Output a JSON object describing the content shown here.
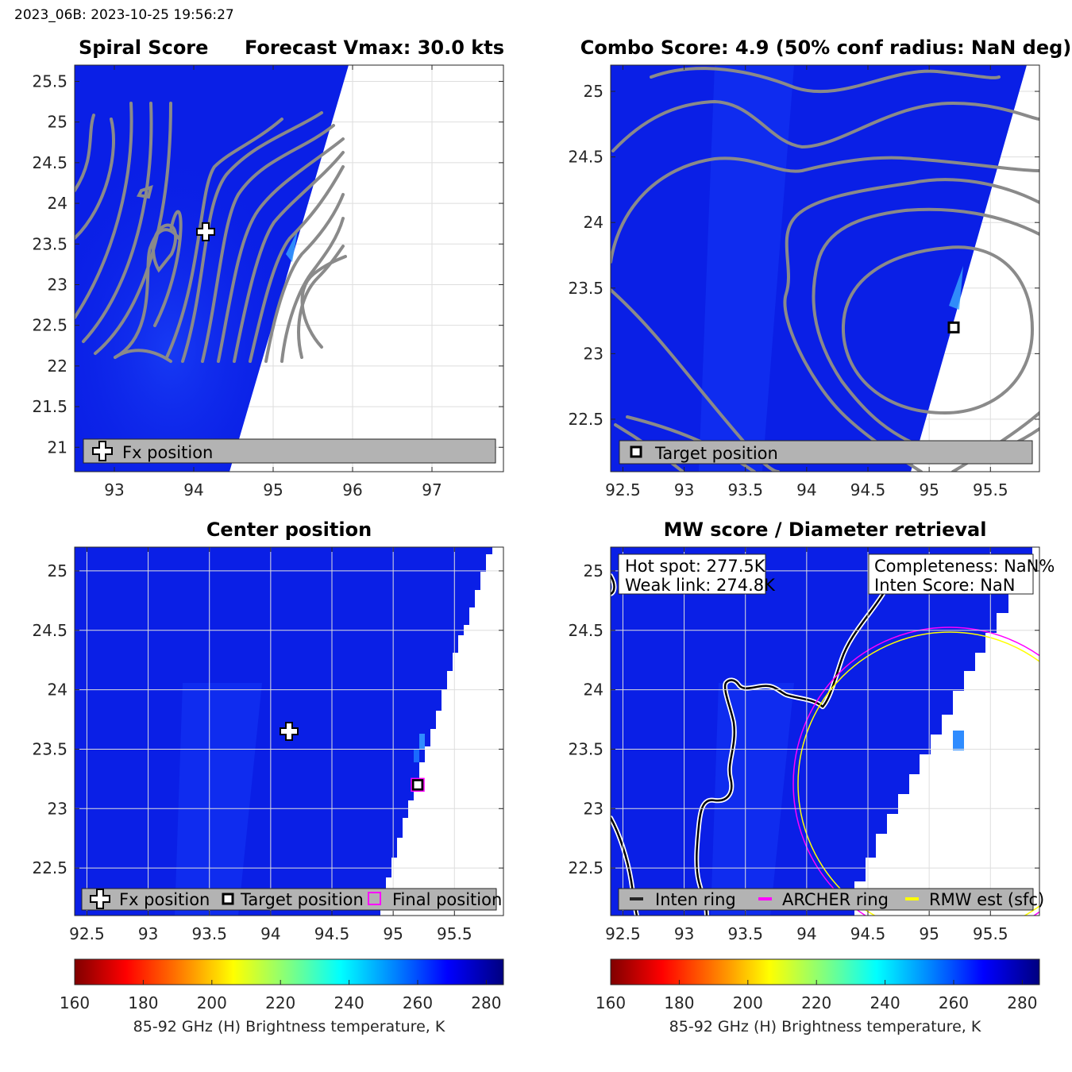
{
  "header": {
    "text": "2023_06B: 2023-10-25 19:56:27"
  },
  "colors": {
    "field_blue": "#0a1fe6",
    "field_blue_light": "#1a48ff",
    "contour_gray": "#8a8a8a",
    "legend_bg": "#b3b3b3",
    "archer_ring": "#ff00ff",
    "rmw_ring": "#ffff00"
  },
  "chart_data": [
    {
      "type": "heatmap",
      "title_left": "Spiral Score",
      "title_right": "Forecast Vmax: 30.0 kts",
      "xlim": [
        92.5,
        97.9
      ],
      "ylim": [
        20.7,
        25.7
      ],
      "xticks": [
        "93",
        "94",
        "95",
        "96",
        "97"
      ],
      "yticks": [
        "21",
        "21.5",
        "22",
        "22.5",
        "23",
        "23.5",
        "24",
        "24.5",
        "25",
        "25.5"
      ],
      "grid": true,
      "swath_edge": [
        [
          95.92,
          25.7
        ],
        [
          94.42,
          20.7
        ]
      ],
      "markers": [
        {
          "type": "plus",
          "x": 94.15,
          "y": 23.65,
          "label": "Fx position"
        }
      ],
      "legend": [
        "Fx position"
      ],
      "legend_position": "bottom"
    },
    {
      "type": "heatmap",
      "title": "Combo Score: 4.9  (50% conf radius: NaN deg)",
      "xlim": [
        92.4,
        95.9
      ],
      "ylim": [
        22.1,
        25.2
      ],
      "xticks": [
        "92.5",
        "93",
        "93.5",
        "94",
        "94.5",
        "95",
        "95.5"
      ],
      "yticks": [
        "22.5",
        "23",
        "23.5",
        "24",
        "24.5",
        "25"
      ],
      "grid": true,
      "swath_edge": [
        [
          95.72,
          25.2
        ],
        [
          94.85,
          22.1
        ]
      ],
      "markers": [
        {
          "type": "square",
          "x": 95.2,
          "y": 23.2,
          "label": "Target position"
        }
      ],
      "legend": [
        "Target position"
      ],
      "legend_position": "bottom"
    },
    {
      "type": "heatmap",
      "title": "Center position",
      "xlim": [
        92.4,
        95.9
      ],
      "ylim": [
        22.1,
        25.2
      ],
      "xticks": [
        "92.5",
        "93",
        "93.5",
        "94",
        "94.5",
        "95",
        "95.5"
      ],
      "yticks": [
        "22.5",
        "23",
        "23.5",
        "24",
        "24.5",
        "25"
      ],
      "grid": true,
      "swath_edge": [
        [
          95.72,
          25.2
        ],
        [
          94.85,
          22.1
        ]
      ],
      "markers": [
        {
          "type": "plus",
          "x": 94.15,
          "y": 23.65,
          "label": "Fx position"
        },
        {
          "type": "square",
          "x": 95.2,
          "y": 23.2,
          "label": "Target position"
        },
        {
          "type": "square-magenta",
          "x": 95.2,
          "y": 23.2,
          "label": "Final position"
        }
      ],
      "legend": [
        "Fx position",
        "Target position",
        "Final position"
      ],
      "legend_position": "bottom"
    },
    {
      "type": "heatmap",
      "title": "MW score / Diameter retrieval",
      "xlim": [
        92.4,
        95.9
      ],
      "ylim": [
        22.1,
        25.2
      ],
      "xticks": [
        "92.5",
        "93",
        "93.5",
        "94",
        "94.5",
        "95",
        "95.5"
      ],
      "yticks": [
        "22.5",
        "23",
        "23.5",
        "24",
        "24.5",
        "25"
      ],
      "grid": true,
      "swath_edge": [
        [
          95.72,
          25.2
        ],
        [
          94.85,
          22.1
        ]
      ],
      "annotations": {
        "hot_spot": "Hot spot: 277.5K",
        "weak_link": "Weak link: 274.8K",
        "completeness": "Completeness: NaN%",
        "inten_score": "Inten Score: NaN"
      },
      "rings": [
        {
          "name": "ARCHER ring",
          "center": [
            95.2,
            23.2
          ],
          "radius_deg": 1.17
        },
        {
          "name": "RMW est (sfc)",
          "center": [
            95.2,
            23.2
          ],
          "radius_deg": 1.14
        }
      ],
      "legend": [
        "Inten ring",
        "ARCHER ring",
        "RMW est (sfc)"
      ],
      "legend_position": "bottom"
    }
  ],
  "colorbar": {
    "range": [
      160,
      285
    ],
    "ticks": [
      "160",
      "180",
      "200",
      "220",
      "240",
      "260",
      "280"
    ],
    "label": "85-92 GHz (H) Brightness temperature, K",
    "colormap": "jet-reversed"
  }
}
